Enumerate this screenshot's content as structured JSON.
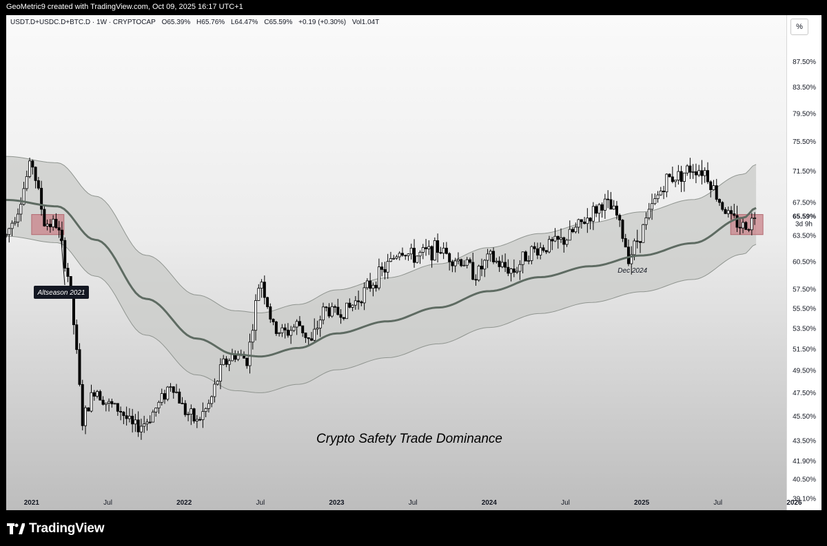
{
  "header": {
    "credit": "GeoMetric9 created with TradingView.com, Oct 09, 2025 16:17 UTC+1"
  },
  "legend": {
    "symbol": "USDT.D+USDC.D+BTC.D · 1W · CRYPTOCAP",
    "open": "O65.39%",
    "high": "H65.76%",
    "low": "L64.47%",
    "close": "C65.59%",
    "change": "+0.19 (+0.30%)",
    "volume": "Vol1.04T"
  },
  "scale_mode_label": "%",
  "price_label": {
    "value": "65.59%",
    "countdown": "3d 9h"
  },
  "brand": {
    "name": "TradingView"
  },
  "colors": {
    "candle": "#000000",
    "basis_line": "#5e6b62",
    "band_fill": "#c9cbc8",
    "highlight_box": "#c9838a"
  },
  "chart_data": {
    "type": "candlestick",
    "title": "Crypto Safety Trade Dominance",
    "x_axis": {
      "tick_labels": [
        "2021",
        "Jul",
        "2022",
        "Jul",
        "2023",
        "Jul",
        "2024",
        "Jul",
        "2025",
        "Jul",
        "2026"
      ],
      "range": [
        "2020-11",
        "2025-12"
      ]
    },
    "y_axis": {
      "unit": "%",
      "scale": "log",
      "tick_labels": [
        "87.50%",
        "83.50%",
        "79.50%",
        "75.50%",
        "71.50%",
        "67.50%",
        "63.50%",
        "60.50%",
        "57.50%",
        "55.50%",
        "53.50%",
        "51.50%",
        "49.50%",
        "47.50%",
        "45.50%",
        "43.50%",
        "41.90%",
        "40.50%",
        "39.10%"
      ],
      "range": [
        38.6,
        92.0
      ]
    },
    "annotations": [
      {
        "text": "Altseason 2021",
        "date": "2021-03"
      },
      {
        "text": "Dec 2024",
        "date": "2024-12"
      }
    ],
    "highlight_zones": [
      {
        "from": "2021-01",
        "to": "2021-03",
        "low": 63.6,
        "high": 66.0
      },
      {
        "from": "2025-08",
        "to": "2025-10",
        "low": 63.6,
        "high": 66.0
      }
    ],
    "price_path": [
      [
        "2020-11",
        63.5
      ],
      [
        "2020-12",
        67.0
      ],
      [
        "2021-01",
        73.0
      ],
      [
        "2021-02",
        65.0
      ],
      [
        "2021-03",
        64.8
      ],
      [
        "2021-04",
        58.0
      ],
      [
        "2021-05",
        45.0
      ],
      [
        "2021-06",
        48.0
      ],
      [
        "2021-07",
        46.5
      ],
      [
        "2021-08",
        46.0
      ],
      [
        "2021-09",
        44.5
      ],
      [
        "2021-10",
        45.0
      ],
      [
        "2021-11",
        46.5
      ],
      [
        "2021-12",
        48.5
      ],
      [
        "2022-01",
        46.0
      ],
      [
        "2022-02",
        45.0
      ],
      [
        "2022-03",
        46.5
      ],
      [
        "2022-04",
        50.0
      ],
      [
        "2022-05",
        51.0
      ],
      [
        "2022-06",
        50.5
      ],
      [
        "2022-07",
        59.0
      ],
      [
        "2022-08",
        53.5
      ],
      [
        "2022-09",
        53.0
      ],
      [
        "2022-10",
        54.0
      ],
      [
        "2022-11",
        52.0
      ],
      [
        "2022-12",
        55.5
      ],
      [
        "2023-01",
        55.0
      ],
      [
        "2023-02",
        55.5
      ],
      [
        "2023-03",
        57.0
      ],
      [
        "2023-04",
        58.5
      ],
      [
        "2023-05",
        60.0
      ],
      [
        "2023-06",
        62.0
      ],
      [
        "2023-07",
        61.0
      ],
      [
        "2023-08",
        61.5
      ],
      [
        "2023-09",
        62.0
      ],
      [
        "2023-10",
        61.0
      ],
      [
        "2023-11",
        60.5
      ],
      [
        "2023-12",
        59.0
      ],
      [
        "2024-01",
        61.0
      ],
      [
        "2024-02",
        60.0
      ],
      [
        "2024-03",
        59.5
      ],
      [
        "2024-04",
        61.5
      ],
      [
        "2024-05",
        62.0
      ],
      [
        "2024-06",
        62.5
      ],
      [
        "2024-07",
        63.0
      ],
      [
        "2024-08",
        64.5
      ],
      [
        "2024-09",
        66.0
      ],
      [
        "2024-10",
        67.5
      ],
      [
        "2024-11",
        66.0
      ],
      [
        "2024-12",
        61.0
      ],
      [
        "2025-01",
        64.0
      ],
      [
        "2025-02",
        67.5
      ],
      [
        "2025-03",
        70.5
      ],
      [
        "2025-04",
        71.0
      ],
      [
        "2025-05",
        72.0
      ],
      [
        "2025-06",
        71.5
      ],
      [
        "2025-07",
        68.0
      ],
      [
        "2025-08",
        65.5
      ],
      [
        "2025-09",
        64.5
      ],
      [
        "2025-10",
        65.59
      ]
    ],
    "basis_line": [
      [
        "2020-11",
        67.8
      ],
      [
        "2021-03",
        67.0
      ],
      [
        "2021-06",
        63.0
      ],
      [
        "2021-10",
        56.5
      ],
      [
        "2022-02",
        52.5
      ],
      [
        "2022-05",
        51.0
      ],
      [
        "2022-07",
        50.8
      ],
      [
        "2022-10",
        51.6
      ],
      [
        "2023-01",
        53.0
      ],
      [
        "2023-05",
        54.2
      ],
      [
        "2023-09",
        55.6
      ],
      [
        "2024-01",
        57.3
      ],
      [
        "2024-05",
        58.8
      ],
      [
        "2024-09",
        60.0
      ],
      [
        "2025-01",
        61.2
      ],
      [
        "2025-05",
        62.6
      ],
      [
        "2025-09",
        65.6
      ],
      [
        "2025-10",
        66.8
      ]
    ],
    "band_width_pct": 5.4
  }
}
